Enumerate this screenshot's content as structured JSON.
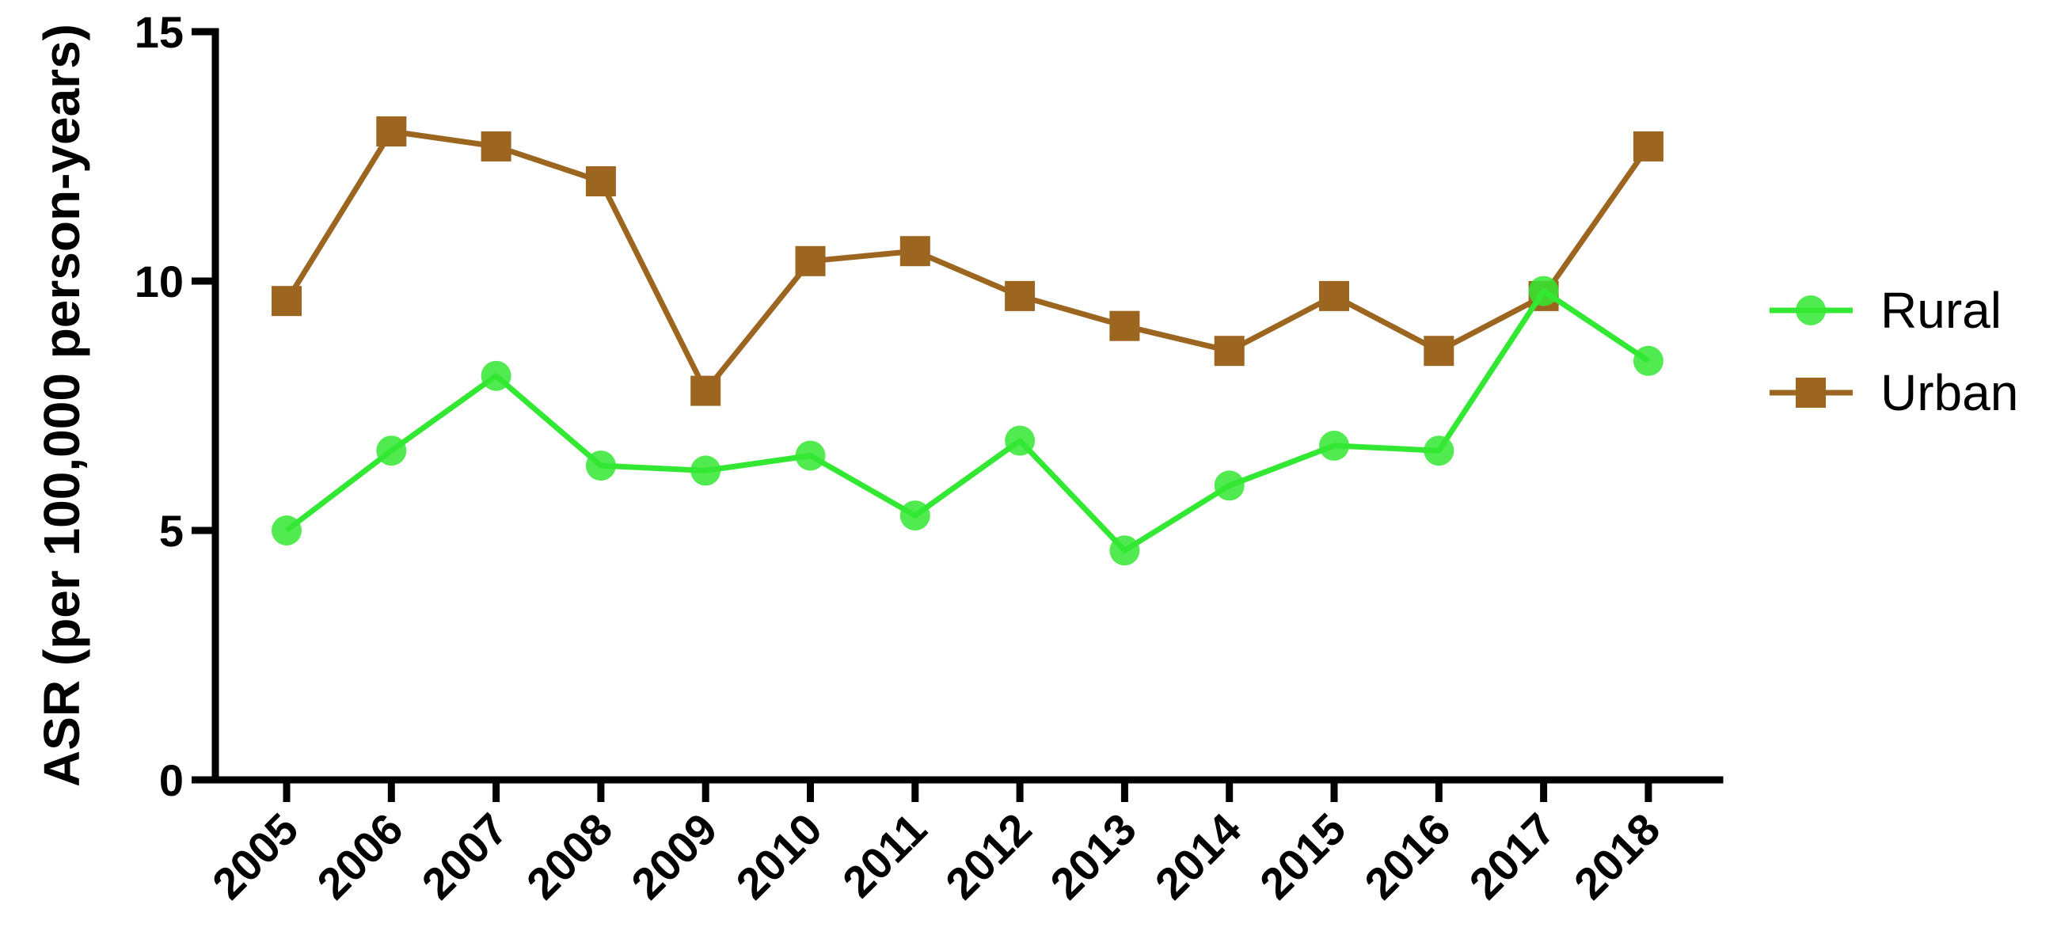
{
  "chart_data": {
    "type": "line",
    "title": "",
    "xlabel": "",
    "ylabel": "ASR (per 100,000 person-years)",
    "ylim": [
      0,
      15
    ],
    "yticks": [
      0,
      5,
      10,
      15
    ],
    "x": [
      "2005",
      "2006",
      "2007",
      "2008",
      "2009",
      "2010",
      "2011",
      "2012",
      "2013",
      "2014",
      "2015",
      "2016",
      "2017",
      "2018"
    ],
    "legend_position": "right",
    "grid": false,
    "series": [
      {
        "name": "Rural",
        "color": "#33e833",
        "marker": "circle",
        "values": [
          5.0,
          6.6,
          8.1,
          6.3,
          6.2,
          6.5,
          5.3,
          6.8,
          4.6,
          5.9,
          6.7,
          6.6,
          9.8,
          8.4
        ]
      },
      {
        "name": "Urban",
        "color": "#9c6520",
        "marker": "square",
        "values": [
          9.6,
          13.0,
          12.7,
          12.0,
          7.8,
          10.4,
          10.6,
          9.7,
          9.1,
          8.6,
          9.7,
          8.6,
          9.7,
          12.7
        ]
      }
    ]
  }
}
